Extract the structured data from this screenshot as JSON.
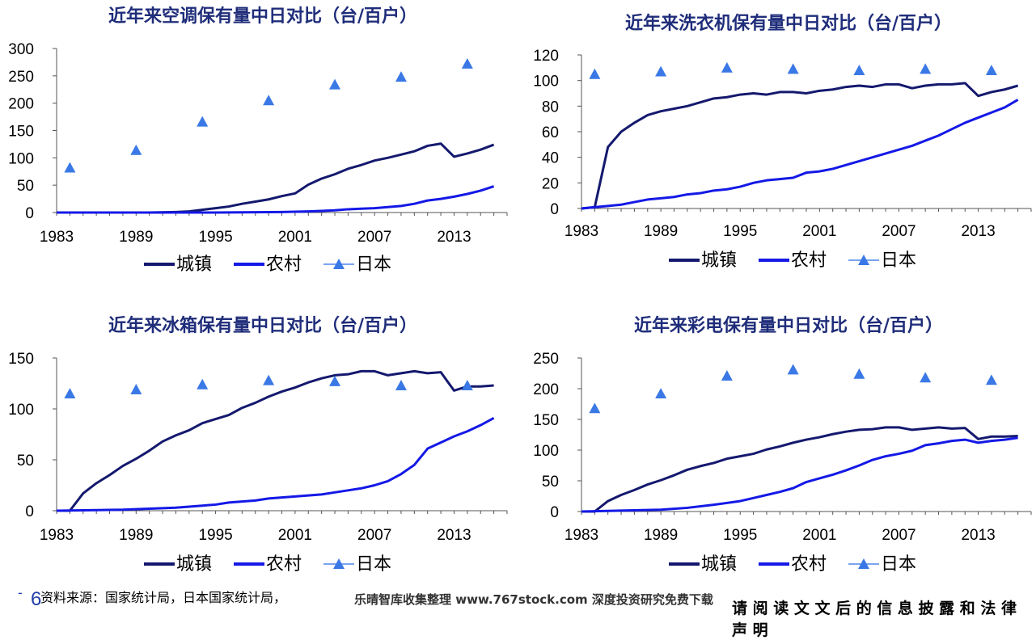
{
  "chart_data": [
    {
      "type": "line",
      "title": "近年来空调保有量中日对比（台/百户）",
      "x_ticks": [
        1983,
        1989,
        1995,
        2001,
        2007,
        2013
      ],
      "y_ticks": [
        0,
        50,
        100,
        150,
        200,
        250,
        300
      ],
      "xlim": [
        1983,
        2017
      ],
      "ylim": [
        0,
        300
      ],
      "legend": [
        "城镇",
        "农村",
        "日本"
      ],
      "series": [
        {
          "name": "城镇",
          "style": "line",
          "color": "#14196e",
          "x": [
            1983,
            1990,
            1992,
            1993,
            1994,
            1995,
            1996,
            1997,
            1998,
            1999,
            2000,
            2001,
            2002,
            2003,
            2004,
            2005,
            2006,
            2007,
            2008,
            2009,
            2010,
            2011,
            2012,
            2013,
            2014,
            2015,
            2016
          ],
          "y": [
            0,
            0,
            1,
            2,
            5,
            8,
            11,
            16,
            20,
            24,
            30,
            35,
            51,
            62,
            70,
            80,
            87,
            95,
            100,
            106,
            112,
            122,
            126,
            102,
            108,
            115,
            124
          ]
        },
        {
          "name": "农村",
          "style": "line",
          "color": "#1419e6",
          "x": [
            1983,
            1995,
            2000,
            2002,
            2003,
            2004,
            2005,
            2006,
            2007,
            2008,
            2009,
            2010,
            2011,
            2012,
            2013,
            2014,
            2015,
            2016
          ],
          "y": [
            0,
            0,
            1,
            2,
            3,
            4,
            6,
            7,
            8,
            10,
            12,
            16,
            22,
            25,
            29,
            34,
            40,
            48
          ]
        },
        {
          "name": "日本",
          "style": "marker",
          "color": "#3a78e6",
          "x": [
            1984,
            1989,
            1994,
            1999,
            2004,
            2009,
            2014
          ],
          "y": [
            82,
            114,
            166,
            205,
            234,
            248,
            272
          ]
        }
      ]
    },
    {
      "type": "line",
      "title": "近年来洗衣机保有量中日对比（台/百户）",
      "x_ticks": [
        1983,
        1989,
        1995,
        2001,
        2007,
        2013
      ],
      "y_ticks": [
        0,
        20,
        40,
        60,
        80,
        100,
        120
      ],
      "xlim": [
        1983,
        2017
      ],
      "ylim": [
        0,
        120
      ],
      "legend": [
        "城镇",
        "农村",
        "日本"
      ],
      "series": [
        {
          "name": "城镇",
          "style": "line",
          "color": "#14196e",
          "x": [
            1983,
            1984,
            1985,
            1986,
            1987,
            1988,
            1989,
            1990,
            1991,
            1992,
            1993,
            1994,
            1995,
            1996,
            1997,
            1998,
            1999,
            2000,
            2001,
            2002,
            2003,
            2004,
            2005,
            2006,
            2007,
            2008,
            2009,
            2010,
            2011,
            2012,
            2013,
            2014,
            2015,
            2016
          ],
          "y": [
            0,
            1,
            48,
            60,
            67,
            73,
            76,
            78,
            80,
            83,
            86,
            87,
            89,
            90,
            89,
            91,
            91,
            90,
            92,
            93,
            95,
            96,
            95,
            97,
            97,
            94,
            96,
            97,
            97,
            98,
            88,
            91,
            93,
            96
          ]
        },
        {
          "name": "农村",
          "style": "line",
          "color": "#1419e6",
          "x": [
            1983,
            1984,
            1985,
            1986,
            1987,
            1988,
            1989,
            1990,
            1991,
            1992,
            1993,
            1994,
            1995,
            1996,
            1997,
            1998,
            1999,
            2000,
            2001,
            2002,
            2003,
            2004,
            2005,
            2006,
            2007,
            2008,
            2009,
            2010,
            2011,
            2012,
            2013,
            2014,
            2015,
            2016
          ],
          "y": [
            0,
            1,
            2,
            3,
            5,
            7,
            8,
            9,
            11,
            12,
            14,
            15,
            17,
            20,
            22,
            23,
            24,
            28,
            29,
            31,
            34,
            37,
            40,
            43,
            46,
            49,
            53,
            57,
            62,
            67,
            71,
            75,
            79,
            85
          ]
        },
        {
          "name": "日本",
          "style": "marker",
          "color": "#3a78e6",
          "x": [
            1984,
            1989,
            1994,
            1999,
            2004,
            2009,
            2014
          ],
          "y": [
            105,
            107,
            110,
            109,
            108,
            109,
            108
          ]
        }
      ]
    },
    {
      "type": "line",
      "title": "近年来冰箱保有量中日对比（台/百户）",
      "x_ticks": [
        1983,
        1989,
        1995,
        2001,
        2007,
        2013
      ],
      "y_ticks": [
        0,
        50,
        100,
        150
      ],
      "xlim": [
        1983,
        2017
      ],
      "ylim": [
        0,
        150
      ],
      "legend": [
        "城镇",
        "农村",
        "日本"
      ],
      "series": [
        {
          "name": "城镇",
          "style": "line",
          "color": "#14196e",
          "x": [
            1983,
            1984,
            1985,
            1986,
            1987,
            1988,
            1989,
            1990,
            1991,
            1992,
            1993,
            1994,
            1995,
            1996,
            1997,
            1998,
            1999,
            2000,
            2001,
            2002,
            2003,
            2004,
            2005,
            2006,
            2007,
            2008,
            2009,
            2010,
            2011,
            2012,
            2013,
            2014,
            2015,
            2016
          ],
          "y": [
            0,
            0,
            17,
            27,
            35,
            44,
            51,
            59,
            68,
            74,
            79,
            86,
            90,
            94,
            101,
            106,
            112,
            117,
            121,
            126,
            130,
            133,
            134,
            137,
            137,
            133,
            135,
            137,
            135,
            136,
            118,
            122,
            122,
            123
          ]
        },
        {
          "name": "农村",
          "style": "line",
          "color": "#1419e6",
          "x": [
            1983,
            1988,
            1990,
            1992,
            1994,
            1995,
            1996,
            1997,
            1998,
            1999,
            2000,
            2001,
            2002,
            2003,
            2004,
            2005,
            2006,
            2007,
            2008,
            2009,
            2010,
            2011,
            2012,
            2013,
            2014,
            2015,
            2016
          ],
          "y": [
            0,
            1,
            2,
            3,
            5,
            6,
            8,
            9,
            10,
            12,
            13,
            14,
            15,
            16,
            18,
            20,
            22,
            25,
            29,
            36,
            45,
            61,
            67,
            73,
            78,
            84,
            91
          ]
        },
        {
          "name": "日本",
          "style": "marker",
          "color": "#3a78e6",
          "x": [
            1984,
            1989,
            1994,
            1999,
            2004,
            2009,
            2014
          ],
          "y": [
            115,
            119,
            124,
            128,
            127,
            123,
            123
          ]
        }
      ]
    },
    {
      "type": "line",
      "title": "近年来彩电保有量中日对比（台/百户）",
      "x_ticks": [
        1983,
        1989,
        1995,
        2001,
        2007,
        2013
      ],
      "y_ticks": [
        0,
        50,
        100,
        150,
        200,
        250
      ],
      "xlim": [
        1983,
        2017
      ],
      "ylim": [
        0,
        250
      ],
      "legend": [
        "城镇",
        "农村",
        "日本"
      ],
      "series": [
        {
          "name": "城镇",
          "style": "line",
          "color": "#14196e",
          "x": [
            1983,
            1984,
            1985,
            1986,
            1987,
            1988,
            1989,
            1990,
            1991,
            1992,
            1993,
            1994,
            1995,
            1996,
            1997,
            1998,
            1999,
            2000,
            2001,
            2002,
            2003,
            2004,
            2005,
            2006,
            2007,
            2008,
            2009,
            2010,
            2011,
            2012,
            2013,
            2014,
            2015,
            2016
          ],
          "y": [
            0,
            0,
            17,
            27,
            35,
            44,
            51,
            59,
            68,
            74,
            79,
            86,
            90,
            94,
            101,
            106,
            112,
            117,
            121,
            126,
            130,
            133,
            134,
            137,
            137,
            133,
            135,
            137,
            135,
            136,
            118,
            122,
            122,
            123
          ]
        },
        {
          "name": "农村",
          "style": "line",
          "color": "#1419e6",
          "x": [
            1983,
            1985,
            1987,
            1989,
            1991,
            1993,
            1995,
            1996,
            1997,
            1998,
            1999,
            2000,
            2001,
            2002,
            2003,
            2004,
            2005,
            2006,
            2007,
            2008,
            2009,
            2010,
            2011,
            2012,
            2013,
            2014,
            2015,
            2016
          ],
          "y": [
            0,
            1,
            2,
            3,
            6,
            11,
            17,
            22,
            27,
            32,
            38,
            48,
            54,
            60,
            67,
            75,
            84,
            90,
            94,
            99,
            108,
            111,
            115,
            117,
            112,
            115,
            117,
            120
          ]
        },
        {
          "name": "日本",
          "style": "marker",
          "color": "#3a78e6",
          "x": [
            1984,
            1989,
            1994,
            1999,
            2004,
            2009,
            2014
          ],
          "y": [
            168,
            192,
            221,
            231,
            224,
            218,
            214
          ]
        }
      ]
    }
  ],
  "footer": {
    "page_number": "6",
    "bullet": "-",
    "source": "资料来源：国家统计局，日本国家统计局，",
    "watermark": "乐晴智库收集整理 www.767stock.com 深度投资研究免费下载",
    "disclaimer": "请 阅 读 文 文 后 的 信 息 披 露 和 法 律 声 明"
  }
}
